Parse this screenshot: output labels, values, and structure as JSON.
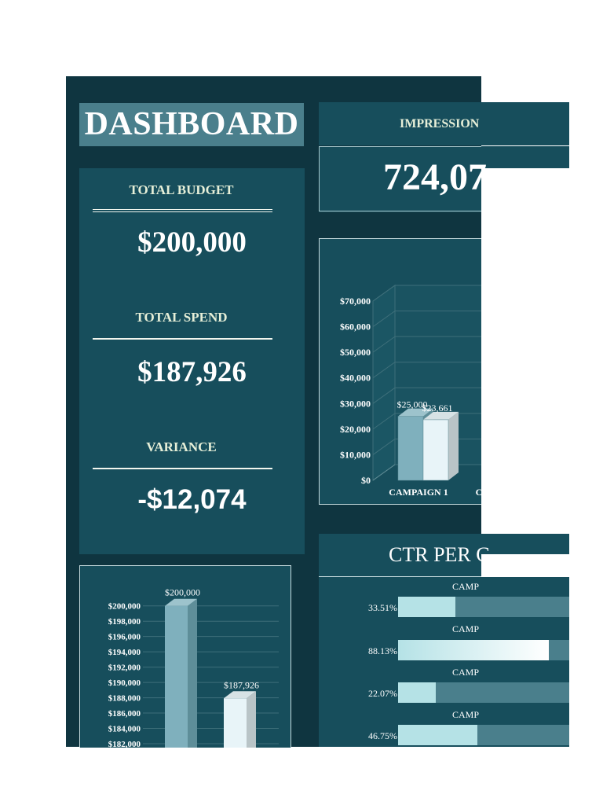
{
  "title": "DASHBOARD",
  "kpis": {
    "total_budget_label": "TOTAL BUDGET",
    "total_budget_value": "$200,000",
    "total_spend_label": "TOTAL SPEND",
    "total_spend_value": "$187,926",
    "variance_label": "VARIANCE",
    "variance_value": "-$12,074"
  },
  "impressions": {
    "label": "IMPRESSION",
    "value": "724,07"
  },
  "ctr": {
    "title": "CTR PER C",
    "rows": [
      {
        "label": "CAMP",
        "percent": "33.51%"
      },
      {
        "label": "CAMP",
        "percent": "88.13%"
      },
      {
        "label": "CAMP",
        "percent": "22.07%"
      },
      {
        "label": "CAMP",
        "percent": "46.75%"
      }
    ]
  },
  "colors": {
    "sheet_bg": "#0f3540",
    "panel": "#174e5c",
    "accent": "#4a7f8c",
    "bar_blue": "#7fb0bd",
    "bar_white": "#e8f4f8"
  },
  "chart_data": [
    {
      "type": "bar",
      "categories": [
        "CAMPAIGN 1",
        "C"
      ],
      "series": [
        {
          "values": [
            25000,
            null
          ]
        },
        {
          "values": [
            23661,
            null
          ]
        }
      ],
      "data_labels": [
        "$25,000",
        "$23,661"
      ],
      "y_ticks": [
        "$70,000",
        "$60,000",
        "$50,000",
        "$40,000",
        "$30,000",
        "$20,000",
        "$10,000",
        "$0"
      ],
      "ylim": [
        0,
        70000
      ]
    },
    {
      "type": "bar",
      "categories": [
        "",
        ""
      ],
      "values": [
        200000,
        187926
      ],
      "data_labels": [
        "$200,000",
        "$187,926"
      ],
      "y_ticks": [
        "$200,000",
        "$198,000",
        "$196,000",
        "$194,000",
        "$192,000",
        "$190,000",
        "$188,000",
        "$186,000",
        "$184,000",
        "$182,000"
      ],
      "ylim": [
        182000,
        201000
      ]
    }
  ]
}
